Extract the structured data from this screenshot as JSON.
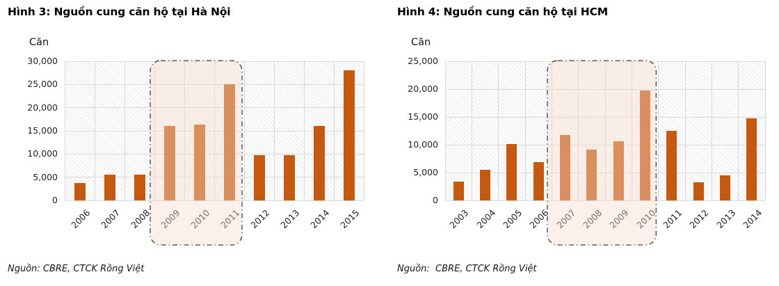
{
  "page": {
    "background": "#ffffff"
  },
  "chart_data": [
    {
      "type": "bar",
      "title": "Hình 3: Nguồn cung căn hộ tại Hà Nội",
      "ylabel": "Căn",
      "xlabel": "",
      "source": "Nguồn: CBRE, CTCK Rồng Việt",
      "categories": [
        "2006",
        "2007",
        "2008",
        "2009",
        "2010",
        "2011",
        "2012",
        "2013",
        "2014",
        "2015"
      ],
      "values": [
        3700,
        5500,
        5600,
        16100,
        16300,
        25000,
        9800,
        9800,
        16100,
        28100
      ],
      "ylim": [
        0,
        30000
      ],
      "ytick_step": 5000,
      "ytick_labels": [
        "0",
        "5,000",
        "10,000",
        "15,000",
        "20,000",
        "25,000",
        "30,000"
      ],
      "grid": true,
      "legend": false,
      "highlight": {
        "from": "2009",
        "to": "2011"
      },
      "colors": {
        "bar": "#C4590F",
        "bar_in_highlight_appearance": "#D78E58",
        "highlight_fill": "rgba(247,222,204,0.42)",
        "highlight_border": "#404040",
        "gridline": "#D9D9D9"
      }
    },
    {
      "type": "bar",
      "title": "Hình 4: Nguồn cung căn hộ tại HCM",
      "ylabel": "Căn",
      "xlabel": "",
      "source": "Nguồn:  CBRE, CTCK Rồng Việt",
      "categories": [
        "2003",
        "2004",
        "2005",
        "2006",
        "2007",
        "2008",
        "2009",
        "2010",
        "2011",
        "2012",
        "2013",
        "2014"
      ],
      "values": [
        3400,
        5500,
        10100,
        6900,
        11800,
        9100,
        10600,
        19700,
        12500,
        3300,
        4500,
        14800
      ],
      "ylim": [
        0,
        25000
      ],
      "ytick_step": 5000,
      "ytick_labels": [
        "0",
        "5,000",
        "10,000",
        "15,000",
        "20,000",
        "25,000"
      ],
      "grid": true,
      "legend": false,
      "highlight": {
        "from": "2007",
        "to": "2010"
      },
      "colors": {
        "bar": "#C4590F",
        "bar_in_highlight_appearance": "#D78E58",
        "highlight_fill": "rgba(247,222,204,0.42)",
        "highlight_border": "#404040",
        "gridline": "#D9D9D9"
      }
    }
  ]
}
